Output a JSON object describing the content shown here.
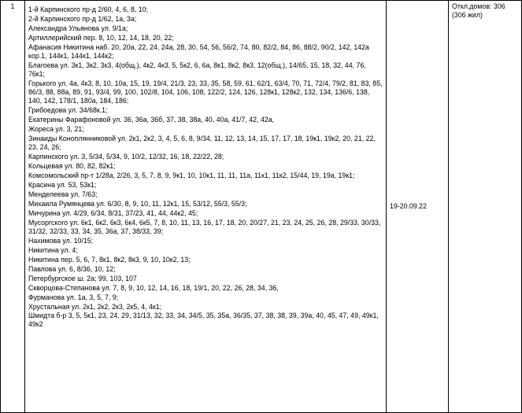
{
  "row_number": "1",
  "dates": "19-20.09.22",
  "count_label_line1": "Откл.домов: 306",
  "count_label_line2": "(306 жил)",
  "addresses": [
    "1-й Карпинского пр-д 2/60, 4, 6, 8, 10;",
    "2-й Карпинского пр-д 1/62, 1а, 3а;",
    "Александра Ульянова ул. 9/1а;",
    "Артиллерийский пер. 8, 10, 12, 14, 18, 20, 22;",
    "Афанасия Никитина наб. 20, 20а, 22, 24, 24а, 28, 30, 54, 56, 56/2, 74, 80, 82/2, 84, 86, 88/2, 90/2, 142, 142а кор.1, 144к1, 144к1, 144к2;",
    "Благоева ул. 3к1, 3к2, 3к3, 4(общ.), 4к2, 4к3, 5, 5к2, 6, 6а, 8к1, 8к2, 8к3, 12(общ.), 14/65, 15, 18, 32, 44, 76, 76к1;",
    "Горького ул. 4а, 4к3, 8, 10, 10а, 15, 19, 19/4, 21/3, 23, 33, 35, 58, 59, 61, 62/1, 63/4, 70, 71, 72/4, 79/2, 81, 83, 85, 86/3, 88, 88а, 89, 91, 93/4, 99, 100, 102/8, 104, 106, 108, 122/2, 124, 126, 128к1, 128к2, 132, 134, 136/6, 138, 140, 142, 178/1, 180а, 184, 186;",
    "Грибоедова ул. 34/68к.1;",
    "Екатерины Фарафоновой ул. 36, 36а, 36б, 37, 38, 38а, 40, 40а, 41/7, 42, 42а,",
    "Жореса ул. 3, 21;",
    "Зинаиды Коноплянниковой ул. 2к1, 2к2, 3, 4, 5, 6, 8, 9/34, 11, 12, 13, 14, 15, 17, 17, 18, 19к1, 19к2, 20, 21, 22, 23, 24, 26;",
    "Карпинского ул. 3, 5/34, 5/34, 9, 10/2, 12/32, 16, 18, 22/22, 28;",
    "Кольцевая ул. 80, 82, 82к1;",
    "Комсомольский пр-т 1/28а, 2/26, 3, 5, 7, 8, 9, 9к1, 10, 10к1, 11, 11, 11а, 11к1, 11к2, 15/44, 19, 19а, 19к1;",
    "Красина ул. 53, 53к1;",
    "Менделеева ул. 7/63;",
    "Михаила Румянцева ул. 6/30, 8, 9, 10, 11, 12к1, 15, 53/12, 55/3, 55/3;",
    "Мичурина ул. 4/29, 6/34, 8/31, 37/23, 41, 44, 44к2, 45;",
    "Мусоргского ул. 6к1, 6к2, 6к3, 6к4, 6к5, 7, 8, 10, 11, 13, 16, 17, 18, 20, 20/27, 21, 23, 24, 25, 26, 28, 29/33, 30/33, 31/32, 32/33, 33, 34, 35, 36а, 37, 38/33, 39;",
    "Нахимова ул. 10/15;",
    "Никитина ул. 4;",
    "Никитина пер. 5, 6, 7, 8к1, 8к2, 8к3, 9, 10, 10к2, 13;",
    "Павлова ул. 6, 8/36, 10, 12;",
    "Петербургское ш. 2а; 99, 103, 107",
    "Скворцова-Степанова ул. 7, 8, 9, 10, 12, 14, 16, 18, 19/1, 20, 22, 26, 28, 34, 36,",
    "Фурманова ул. 1а, 3, 5, 7, 9;",
    "Хрустальная ул. 2к1, 2к2, 2к3, 2к5, 4, 4к1;",
    "Шмидта б-р 3, 5, 5к1, 23, 24, 29, 31/13, 32, 33, 34, 34/5, 35, 35а, 36/35, 37, 38, 38, 39, 39а, 40, 45, 47, 49, 49к1, 49к2"
  ]
}
